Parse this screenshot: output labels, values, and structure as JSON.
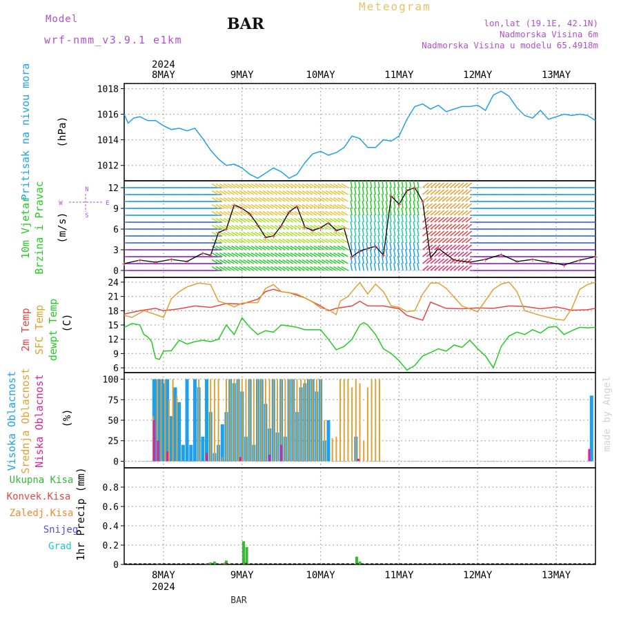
{
  "header": {
    "model_label": "Model",
    "model_name": "wrf-nmm_v3.9.1 e1km",
    "station": "BAR",
    "title": "Meteogram",
    "location": "lon,lat (19.1E, 42.1N)",
    "elevation": "Nadmorska Visina 6m",
    "model_elevation": "Nadmorska Visina u modelu 65.4918m",
    "footer": "BAR",
    "watermark": "made by Angel",
    "year_top": "2024",
    "year_bottom": "2024"
  },
  "colors": {
    "pressure": "#1ea0ee",
    "temp2m": "#e84545",
    "sfc_temp": "#e0a030",
    "dewpoint": "#22cc22",
    "cloud_high": "#1ea0ee",
    "cloud_mid": "#e0a030",
    "cloud_low": "#e0209a",
    "precip_total": "#33bb33",
    "precip_conv": "#e84545",
    "precip_frozen": "#f08a30",
    "precip_snow": "#5050dd",
    "precip_graupel": "#22c8c8",
    "wind_label": "#22cc22",
    "header_purple": "#b050d0",
    "title_gold": "#e8c068"
  },
  "chart_data": [
    {
      "type": "line",
      "panel": "pressure",
      "ylabel_lines": [
        "Pritisak na nivou mora"
      ],
      "unit": "(hPa)",
      "x_categories": [
        "8MAY",
        "9MAY",
        "10MAY",
        "11MAY",
        "12MAY",
        "13MAY"
      ],
      "x_range_days": [
        7.5,
        13.5
      ],
      "ylim": [
        1010.8,
        1018.4
      ],
      "yticks": [
        1012,
        1014,
        1016,
        1018
      ],
      "grid": true,
      "series": [
        {
          "x": [
            7.5,
            7.55,
            7.62,
            7.7,
            7.8,
            7.9,
            8.0,
            8.1,
            8.2,
            8.3,
            8.4,
            8.5,
            8.6,
            8.7,
            8.8,
            8.9,
            9.0,
            9.1,
            9.2,
            9.3,
            9.4,
            9.5,
            9.6,
            9.7,
            9.8,
            9.9,
            10.0,
            10.1,
            10.2,
            10.3,
            10.4,
            10.5,
            10.6,
            10.7,
            10.8,
            10.9,
            11.0,
            11.1,
            11.2,
            11.3,
            11.4,
            11.5,
            11.6,
            11.7,
            11.8,
            11.9,
            12.0,
            12.1,
            12.2,
            12.3,
            12.4,
            12.5,
            12.6,
            12.7,
            12.8,
            12.9,
            13.0,
            13.1,
            13.2,
            13.3,
            13.4,
            13.5
          ],
          "y": [
            1016.0,
            1015.3,
            1015.7,
            1015.8,
            1015.5,
            1015.5,
            1015.1,
            1014.8,
            1014.9,
            1014.7,
            1014.9,
            1014.1,
            1013.2,
            1012.5,
            1012.0,
            1012.1,
            1011.8,
            1011.3,
            1011.0,
            1011.4,
            1011.8,
            1011.5,
            1011.0,
            1011.3,
            1012.2,
            1012.9,
            1013.1,
            1012.8,
            1013.0,
            1013.4,
            1014.3,
            1014.1,
            1013.4,
            1013.4,
            1014.0,
            1013.9,
            1014.3,
            1015.6,
            1016.6,
            1016.8,
            1016.4,
            1016.7,
            1016.2,
            1016.4,
            1016.6,
            1016.6,
            1016.7,
            1016.3,
            1017.5,
            1017.8,
            1017.4,
            1016.5,
            1015.9,
            1015.7,
            1016.3,
            1015.6,
            1015.8,
            1016.0,
            1015.9,
            1016.0,
            1015.9,
            1015.5
          ],
          "color_key": "pressure"
        }
      ]
    },
    {
      "type": "barbs",
      "panel": "wind",
      "ylabel_lines": [
        "10m Vjetar",
        "Brzina i Pravac"
      ],
      "unit": "(m/s)",
      "compass": {
        "north": "N",
        "south": "S",
        "east": "E",
        "west": "W"
      },
      "ylim": [
        -1,
        13
      ],
      "yticks": [
        0,
        3,
        6,
        9,
        12
      ],
      "grid": true,
      "speed_max": {
        "x": [
          7.5,
          7.7,
          7.9,
          8.1,
          8.3,
          8.5,
          8.6,
          8.7,
          8.8,
          8.9,
          9.0,
          9.1,
          9.2,
          9.3,
          9.4,
          9.5,
          9.6,
          9.7,
          9.8,
          9.9,
          10.0,
          10.1,
          10.2,
          10.3,
          10.4,
          10.5,
          10.6,
          10.7,
          10.8,
          10.9,
          11.0,
          11.1,
          11.2,
          11.3,
          11.4,
          11.5,
          11.7,
          11.9,
          12.1,
          12.3,
          12.5,
          12.7,
          12.9,
          13.1,
          13.3,
          13.5
        ],
        "y": [
          1,
          1.5,
          1.2,
          1.6,
          1.3,
          2.5,
          2.2,
          5.5,
          6,
          9.5,
          9,
          8.2,
          6.6,
          4.8,
          5,
          6.5,
          8.5,
          9.3,
          6.3,
          5.8,
          6.2,
          6.9,
          5.8,
          6.1,
          2,
          2.8,
          3.2,
          3.5,
          2.2,
          10.8,
          9.6,
          11.6,
          12,
          10,
          1.8,
          3.2,
          1.5,
          1.2,
          1.6,
          2.3,
          1.3,
          1.6,
          1.2,
          0.8,
          1.5,
          2
        ]
      },
      "direction_bands": [
        {
          "x0": 7.5,
          "x1": 8.7,
          "dir": "E"
        },
        {
          "x0": 8.7,
          "x1": 9.5,
          "dir": "SW"
        },
        {
          "x0": 9.5,
          "x1": 10.4,
          "dir": "SW"
        },
        {
          "x0": 10.4,
          "x1": 11.3,
          "dir": "S"
        },
        {
          "x0": 11.3,
          "x1": 11.9,
          "dir": "NE"
        },
        {
          "x0": 11.9,
          "x1": 13.5,
          "dir": "E"
        }
      ]
    },
    {
      "type": "line",
      "panel": "temperature",
      "ylabel_lines": [
        "2m Temp",
        "SFC Temp",
        "dewpt Temp"
      ],
      "unit": "(C)",
      "ylim": [
        5,
        25
      ],
      "yticks": [
        6,
        9,
        12,
        15,
        18,
        21,
        24
      ],
      "grid": true,
      "series": [
        {
          "name": "2m Temp",
          "color_key": "temp2m",
          "x": [
            7.5,
            7.7,
            7.9,
            8.0,
            8.2,
            8.4,
            8.6,
            8.8,
            9.0,
            9.2,
            9.3,
            9.4,
            9.5,
            9.6,
            9.8,
            10.0,
            10.1,
            10.2,
            10.4,
            10.5,
            10.6,
            10.8,
            11.0,
            11.1,
            11.2,
            11.3,
            11.4,
            11.6,
            11.8,
            12.0,
            12.2,
            12.4,
            12.6,
            12.8,
            13.0,
            13.2,
            13.4,
            13.5
          ],
          "y": [
            17.3,
            18,
            18.5,
            18,
            18.4,
            19,
            18.7,
            19.5,
            19.4,
            20.4,
            22,
            22.5,
            22,
            21.8,
            20.7,
            19,
            18,
            18.5,
            19,
            20,
            19,
            19,
            18.4,
            17,
            16.5,
            16,
            19.8,
            18.5,
            18.4,
            18.6,
            18.5,
            19,
            18.9,
            18.4,
            18.8,
            18.1,
            18.2,
            18.5
          ]
        },
        {
          "name": "SFC Temp",
          "color_key": "sfc_temp",
          "x": [
            7.5,
            7.6,
            7.75,
            7.9,
            8.0,
            8.1,
            8.2,
            8.3,
            8.45,
            8.6,
            8.7,
            8.8,
            8.9,
            9.0,
            9.1,
            9.2,
            9.3,
            9.4,
            9.5,
            9.6,
            9.7,
            9.8,
            9.9,
            10.0,
            10.1,
            10.2,
            10.25,
            10.35,
            10.45,
            10.5,
            10.6,
            10.7,
            10.8,
            10.9,
            11.0,
            11.1,
            11.2,
            11.3,
            11.4,
            11.5,
            11.6,
            11.8,
            12.0,
            12.2,
            12.3,
            12.4,
            12.5,
            12.6,
            12.8,
            13.0,
            13.1,
            13.2,
            13.3,
            13.4,
            13.5
          ],
          "y": [
            17,
            16.6,
            18,
            17.2,
            16.6,
            20.5,
            22,
            23,
            23.8,
            23.5,
            20,
            19.5,
            18.8,
            19.6,
            19.7,
            19.7,
            22.7,
            23.5,
            22,
            21.8,
            21.5,
            20.7,
            19.8,
            18.6,
            18.2,
            17.2,
            20,
            21,
            23,
            23.9,
            21.5,
            23.6,
            22,
            19,
            18.7,
            17.8,
            18,
            21.5,
            23.8,
            23.8,
            22.7,
            19,
            17.8,
            22.5,
            23.6,
            24,
            22,
            18,
            17,
            16.2,
            16,
            18.5,
            22.5,
            23.5,
            24
          ]
        },
        {
          "name": "dewpt Temp",
          "color_key": "dewpoint",
          "x": [
            7.5,
            7.6,
            7.7,
            7.75,
            7.8,
            7.85,
            7.9,
            7.95,
            8.0,
            8.1,
            8.2,
            8.3,
            8.4,
            8.5,
            8.6,
            8.7,
            8.8,
            8.9,
            9.0,
            9.1,
            9.2,
            9.3,
            9.4,
            9.5,
            9.6,
            9.7,
            9.8,
            9.9,
            10.0,
            10.1,
            10.2,
            10.3,
            10.4,
            10.45,
            10.5,
            10.55,
            10.6,
            10.7,
            10.8,
            10.9,
            11.0,
            11.1,
            11.2,
            11.3,
            11.4,
            11.5,
            11.6,
            11.7,
            11.8,
            11.9,
            12.0,
            12.1,
            12.2,
            12.3,
            12.4,
            12.5,
            12.6,
            12.7,
            12.8,
            12.9,
            13.0,
            13.1,
            13.2,
            13.3,
            13.4,
            13.5
          ],
          "y": [
            14.5,
            15.3,
            15,
            13,
            12.5,
            11.5,
            8,
            7.8,
            9.5,
            9.6,
            11.8,
            11,
            11.5,
            11.8,
            11.5,
            12,
            15,
            13,
            16.5,
            14.5,
            13,
            13.8,
            13.5,
            15,
            14.8,
            14.5,
            14,
            14,
            14,
            12,
            9.8,
            10.5,
            12,
            13.5,
            15,
            15.5,
            15,
            13,
            10,
            9,
            7.5,
            5.5,
            6.5,
            8.5,
            9.2,
            10,
            9.5,
            10.8,
            10.3,
            11.8,
            10,
            8.5,
            6,
            10.5,
            12.7,
            13.5,
            13,
            14,
            13.3,
            14.5,
            14.7,
            13,
            13.8,
            14.5,
            14.4,
            14.5
          ]
        }
      ]
    },
    {
      "type": "bar",
      "panel": "cloud_cover",
      "ylabel_lines": [
        "Visoka Oblacnost",
        "Srednja Oblacnost",
        "Niska Oblacnost"
      ],
      "unit": "(%)",
      "ylim": [
        -8,
        108
      ],
      "yticks": [
        0,
        25,
        50,
        75,
        100
      ],
      "grid": true,
      "series": [
        {
          "name": "Visoka Oblacnost",
          "color_key": "cloud_high",
          "x": [
            7.88,
            7.9,
            7.93,
            7.95,
            7.98,
            8.0,
            8.05,
            8.1,
            8.15,
            8.2,
            8.25,
            8.3,
            8.35,
            8.4,
            8.45,
            8.5,
            8.55,
            8.6,
            8.65,
            8.7,
            8.75,
            8.8,
            8.85,
            8.9,
            8.95,
            9.0,
            9.05,
            9.1,
            9.15,
            9.2,
            9.25,
            9.3,
            9.35,
            9.4,
            9.45,
            9.5,
            9.55,
            9.6,
            9.65,
            9.7,
            9.75,
            9.8,
            9.85,
            9.9,
            9.95,
            10.0,
            10.05,
            10.1,
            10.45,
            13.45
          ],
          "values": [
            100,
            100,
            50,
            100,
            100,
            95,
            100,
            55,
            90,
            72,
            20,
            100,
            20,
            100,
            90,
            30,
            100,
            60,
            10,
            20,
            45,
            60,
            100,
            95,
            100,
            85,
            30,
            100,
            20,
            100,
            100,
            70,
            40,
            100,
            35,
            100,
            30,
            100,
            100,
            60,
            90,
            95,
            100,
            100,
            85,
            100,
            25,
            50,
            30,
            80
          ]
        },
        {
          "name": "Srednja Oblacnost",
          "color_key": "cloud_mid",
          "x": [
            7.87,
            7.92,
            7.97,
            8.02,
            8.07,
            8.12,
            8.17,
            8.45,
            8.55,
            8.6,
            8.65,
            8.7,
            8.75,
            8.8,
            8.85,
            8.9,
            8.95,
            9.0,
            9.05,
            9.1,
            9.15,
            9.2,
            9.25,
            9.3,
            9.35,
            9.4,
            9.45,
            9.5,
            9.55,
            9.6,
            9.65,
            9.7,
            9.75,
            9.8,
            9.85,
            9.9,
            9.95,
            10.0,
            10.05,
            10.15,
            10.2,
            10.25,
            10.3,
            10.35,
            10.4,
            10.45,
            10.5,
            10.55,
            10.6,
            10.65,
            10.7,
            10.75
          ],
          "values": [
            55,
            100,
            100,
            100,
            75,
            100,
            80,
            100,
            5,
            100,
            100,
            100,
            5,
            100,
            100,
            100,
            100,
            100,
            100,
            100,
            100,
            100,
            100,
            100,
            100,
            100,
            100,
            100,
            100,
            100,
            100,
            100,
            100,
            100,
            100,
            100,
            100,
            100,
            50,
            28,
            30,
            100,
            100,
            100,
            90,
            100,
            95,
            25,
            90,
            100,
            100,
            100
          ]
        },
        {
          "name": "Niska Oblacnost",
          "color_key": "cloud_low",
          "x": [
            7.88,
            7.93,
            8.05,
            8.55,
            8.98,
            9.35,
            9.5,
            10.48,
            13.42
          ],
          "values": [
            50,
            25,
            12,
            10,
            5,
            8,
            20,
            3,
            15
          ]
        }
      ]
    },
    {
      "type": "bar",
      "panel": "precipitation",
      "legend": [
        "Ukupna Kisa",
        "Konvek.Kisa",
        "Zaledj.Kisa",
        "Snijeg",
        "Grad"
      ],
      "unit": "1hr Precip (mm)",
      "ylim": [
        0,
        1.0
      ],
      "yticks": [
        0,
        0.2,
        0.4,
        0.6,
        0.8
      ],
      "grid": true,
      "series": [
        {
          "name": "Ukupna Kisa",
          "color_key": "precip_total",
          "x": [
            7.93,
            8.55,
            8.6,
            8.65,
            8.75,
            8.8,
            9.02,
            9.06,
            10.46,
            10.5
          ],
          "values": [
            0.01,
            0.01,
            0.02,
            0.03,
            0.01,
            0.04,
            0.24,
            0.18,
            0.08,
            0.03
          ]
        },
        {
          "name": "Konvek.Kisa",
          "color_key": "precip_conv",
          "x": [
            8.58,
            8.78,
            9.04
          ],
          "values": [
            0.01,
            0.02,
            0.02
          ]
        }
      ]
    }
  ]
}
